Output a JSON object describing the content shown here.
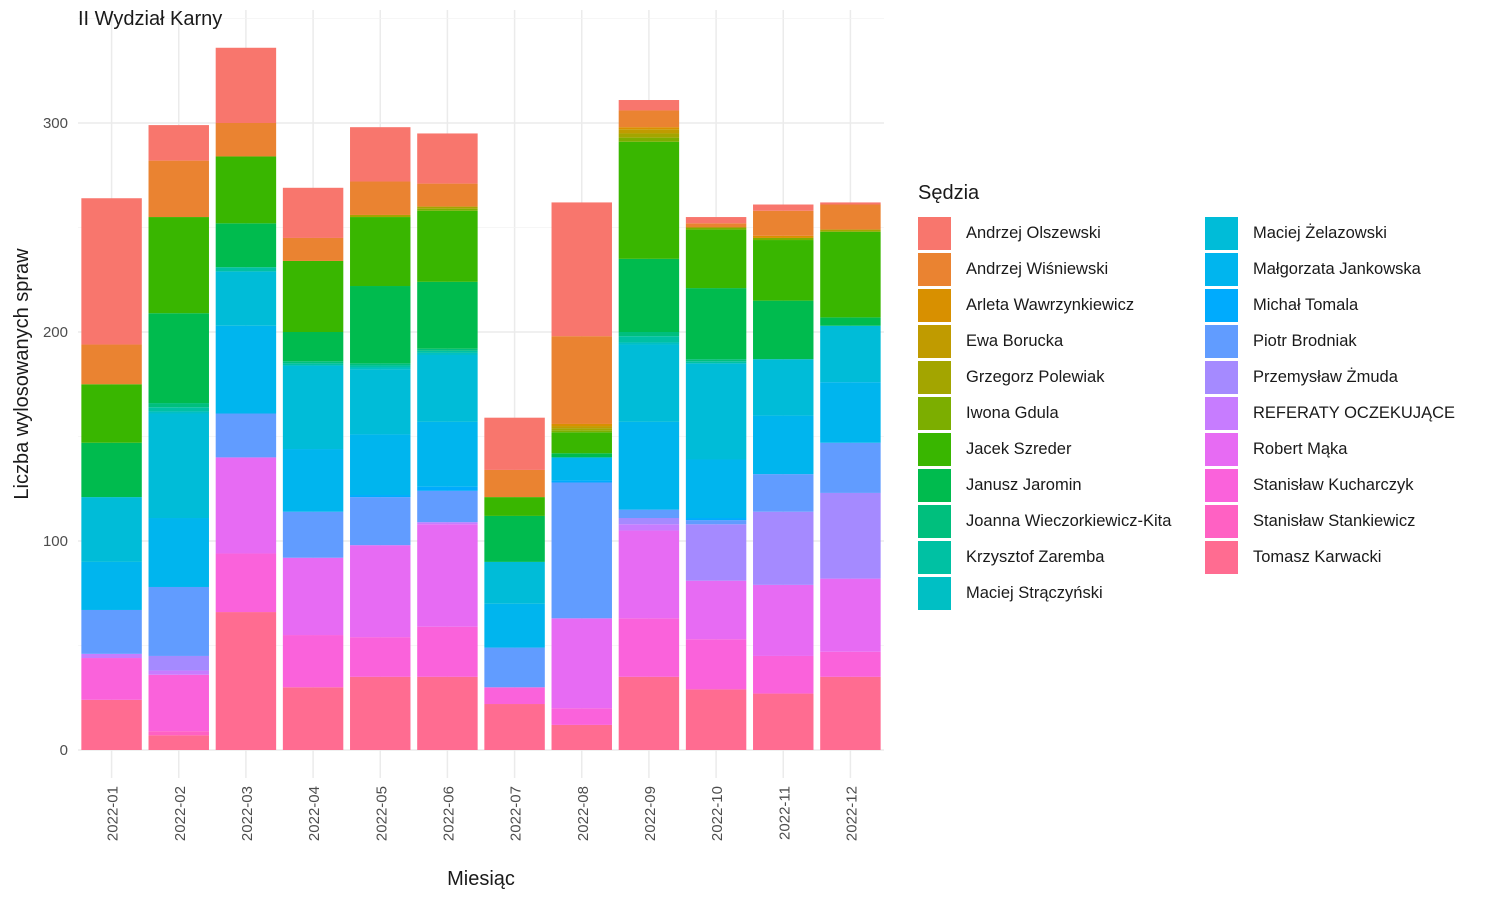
{
  "chart_data": {
    "type": "bar",
    "stacked": true,
    "title": "II Wydział Karny",
    "xlabel": "Miesiąc",
    "ylabel": "Liczba wylosowanych spraw",
    "ylim": [
      0,
      345
    ],
    "yticks": [
      0,
      100,
      200,
      300
    ],
    "grid": true,
    "legend_title": "Sędzia",
    "legend_position": "right",
    "categories": [
      "2022-01",
      "2022-02",
      "2022-03",
      "2022-04",
      "2022-05",
      "2022-06",
      "2022-07",
      "2022-08",
      "2022-09",
      "2022-10",
      "2022-11",
      "2022-12"
    ],
    "series": [
      {
        "name": "Andrzej Olszewski",
        "color": "#F8766D",
        "values": [
          70,
          17,
          36,
          24,
          26,
          24,
          25,
          64,
          5,
          3,
          3,
          1
        ]
      },
      {
        "name": "Andrzej Wiśniewski",
        "color": "#EA8331",
        "values": [
          19,
          27,
          16,
          11,
          16,
          11,
          13,
          42,
          8,
          2,
          12,
          12
        ]
      },
      {
        "name": "Arleta Wawrzynkiewicz",
        "color": "#D89000",
        "values": [
          0,
          0,
          0,
          0,
          0,
          0,
          0,
          1,
          1,
          0,
          1,
          0
        ]
      },
      {
        "name": "Ewa Borucka",
        "color": "#C09B00",
        "values": [
          0,
          0,
          0,
          0,
          0,
          0,
          0,
          1,
          2,
          0,
          0,
          0
        ]
      },
      {
        "name": "Grzegorz Polewiak",
        "color": "#A3A500",
        "values": [
          0,
          0,
          0,
          0,
          1,
          1,
          0,
          1,
          2,
          0,
          0,
          1
        ]
      },
      {
        "name": "Iwona Gdula",
        "color": "#7CAE00",
        "values": [
          0,
          0,
          0,
          0,
          0,
          1,
          0,
          1,
          2,
          1,
          1,
          0
        ]
      },
      {
        "name": "Jacek Szreder",
        "color": "#39B600",
        "values": [
          28,
          46,
          32,
          34,
          33,
          34,
          9,
          10,
          56,
          28,
          29,
          41
        ]
      },
      {
        "name": "Janusz Jaromin",
        "color": "#00BB4E",
        "values": [
          26,
          43,
          21,
          14,
          37,
          32,
          22,
          2,
          35,
          34,
          28,
          4
        ]
      },
      {
        "name": "Joanna Wieczorkiewicz-Kita",
        "color": "#00BF7D",
        "values": [
          0,
          2,
          0,
          1,
          1,
          1,
          0,
          0,
          2,
          1,
          0,
          0
        ]
      },
      {
        "name": "Krzysztof Zaremba",
        "color": "#00C1A3",
        "values": [
          0,
          2,
          2,
          1,
          1,
          1,
          0,
          0,
          3,
          1,
          0,
          0
        ]
      },
      {
        "name": "Maciej Strączyński",
        "color": "#00BFC4",
        "values": [
          0,
          1,
          0,
          0,
          1,
          1,
          0,
          0,
          1,
          0,
          0,
          0
        ]
      },
      {
        "name": "Maciej Żelazowski",
        "color": "#00BCD8",
        "values": [
          31,
          50,
          26,
          40,
          31,
          32,
          20,
          0,
          37,
          46,
          27,
          27
        ]
      },
      {
        "name": "Małgorzata Jankowska",
        "color": "#00B5EE",
        "values": [
          23,
          33,
          42,
          30,
          29,
          31,
          21,
          11,
          42,
          28,
          28,
          29
        ]
      },
      {
        "name": "Michał Tomala",
        "color": "#00ABFD",
        "values": [
          0,
          0,
          0,
          0,
          1,
          2,
          0,
          1,
          0,
          1,
          0,
          0
        ]
      },
      {
        "name": "Piotr Brodniak",
        "color": "#619CFF",
        "values": [
          21,
          33,
          21,
          22,
          23,
          15,
          19,
          65,
          4,
          2,
          18,
          24
        ]
      },
      {
        "name": "Przemysław Żmuda",
        "color": "#A58AFF",
        "values": [
          0,
          7,
          0,
          0,
          0,
          0,
          0,
          0,
          3,
          27,
          35,
          41
        ]
      },
      {
        "name": "REFERATY OCZEKUJĄCE",
        "color": "#C77CFF",
        "values": [
          2,
          2,
          0,
          0,
          0,
          1,
          0,
          0,
          3,
          0,
          0,
          0
        ]
      },
      {
        "name": "Robert Mąka",
        "color": "#E76BF3",
        "values": [
          0,
          0,
          46,
          37,
          44,
          49,
          0,
          43,
          42,
          28,
          34,
          35
        ]
      },
      {
        "name": "Stanisław Kucharczyk",
        "color": "#FA62DB",
        "values": [
          20,
          27,
          28,
          25,
          19,
          24,
          8,
          8,
          28,
          24,
          18,
          12
        ]
      },
      {
        "name": "Stanisław Stankiewicz",
        "color": "#FF61C3",
        "values": [
          0,
          2,
          0,
          0,
          0,
          0,
          0,
          0,
          0,
          0,
          0,
          0
        ]
      },
      {
        "name": "Tomasz Karwacki",
        "color": "#FF6C91",
        "values": [
          24,
          7,
          66,
          30,
          35,
          35,
          22,
          12,
          35,
          29,
          27,
          35
        ]
      }
    ]
  }
}
